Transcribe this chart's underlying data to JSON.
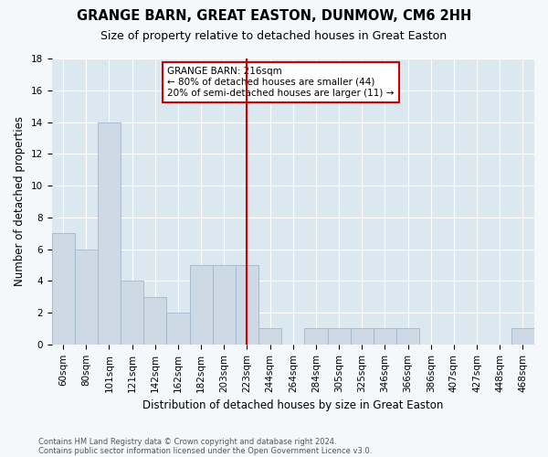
{
  "title": "GRANGE BARN, GREAT EASTON, DUNMOW, CM6 2HH",
  "subtitle": "Size of property relative to detached houses in Great Easton",
  "xlabel": "Distribution of detached houses by size in Great Easton",
  "ylabel": "Number of detached properties",
  "footnote1": "Contains HM Land Registry data © Crown copyright and database right 2024.",
  "footnote2": "Contains public sector information licensed under the Open Government Licence v3.0.",
  "categories": [
    "60sqm",
    "80sqm",
    "101sqm",
    "121sqm",
    "142sqm",
    "162sqm",
    "182sqm",
    "203sqm",
    "223sqm",
    "244sqm",
    "264sqm",
    "284sqm",
    "305sqm",
    "325sqm",
    "346sqm",
    "366sqm",
    "386sqm",
    "407sqm",
    "427sqm",
    "448sqm",
    "468sqm"
  ],
  "values": [
    7,
    6,
    14,
    4,
    3,
    2,
    5,
    5,
    5,
    1,
    0,
    1,
    1,
    1,
    1,
    1,
    0,
    0,
    0,
    0,
    1
  ],
  "bar_color": "#cdd9e5",
  "bar_edge_color": "#a0b8cc",
  "highlight_line_index": 8,
  "highlight_line_color": "#cc0000",
  "annotation_box_color": "#cc0000",
  "annotation_title": "GRANGE BARN: 216sqm",
  "annotation_line1": "← 80% of detached houses are smaller (44)",
  "annotation_line2": "20% of semi-detached houses are larger (11) →",
  "ylim": [
    0,
    18
  ],
  "yticks": [
    0,
    2,
    4,
    6,
    8,
    10,
    12,
    14,
    16,
    18
  ],
  "background_color": "#f5f8fa",
  "plot_bg_color": "#dce8f0",
  "grid_color": "#ffffff",
  "title_fontsize": 10.5,
  "subtitle_fontsize": 9,
  "axis_label_fontsize": 8.5,
  "tick_fontsize": 7.5
}
